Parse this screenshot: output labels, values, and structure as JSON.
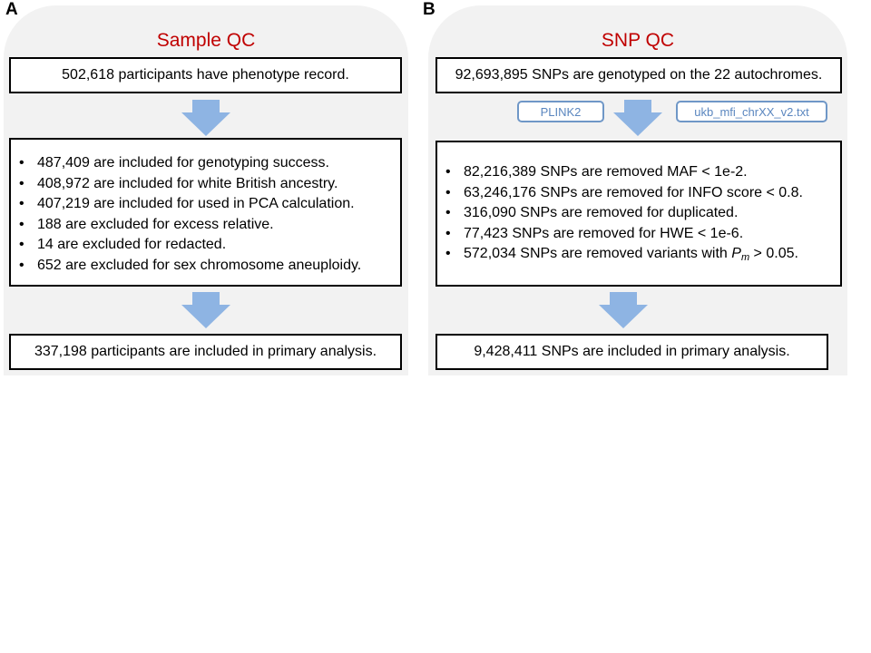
{
  "panel_a": {
    "letter": "A",
    "title": "Sample QC",
    "top_box": "502,618 participants have phenotype record.",
    "criteria": [
      "487,409 are included for genotyping success.",
      "408,972 are included for white British ancestry.",
      "407,219 are included for used in PCA calculation.",
      "188 are excluded for excess relative.",
      "14 are excluded for redacted.",
      "652 are excluded for sex chromosome aneuploidy."
    ],
    "bottom_box": "337,198 participants are included in primary analysis."
  },
  "panel_b": {
    "letter": "B",
    "title": "SNP QC",
    "top_box": "92,693,895 SNPs are genotyped on the 22 autochromes.",
    "tool_left": "PLINK2",
    "tool_right": "ukb_mfi_chrXX_v2.txt",
    "criteria": [
      "82,216,389 SNPs are removed MAF < 1e-2.",
      "63,246,176 SNPs are removed for INFO score < 0.8.",
      "316,090 SNPs are removed for duplicated.",
      "77,423 SNPs are removed for HWE < 1e-6."
    ],
    "last_criterion": {
      "prefix": "572,034 SNPs are removed variants with ",
      "symbol": "P",
      "subscript": "m",
      "suffix": " > 0.05."
    },
    "bottom_box": "9,428,411 SNPs are included in primary analysis."
  },
  "colors": {
    "panel_bg": "#f2f2f2",
    "title_red": "#c00000",
    "arrow_blue": "#8eb4e3",
    "tag_border": "#6f97c7",
    "tag_text": "#5a86bf"
  }
}
